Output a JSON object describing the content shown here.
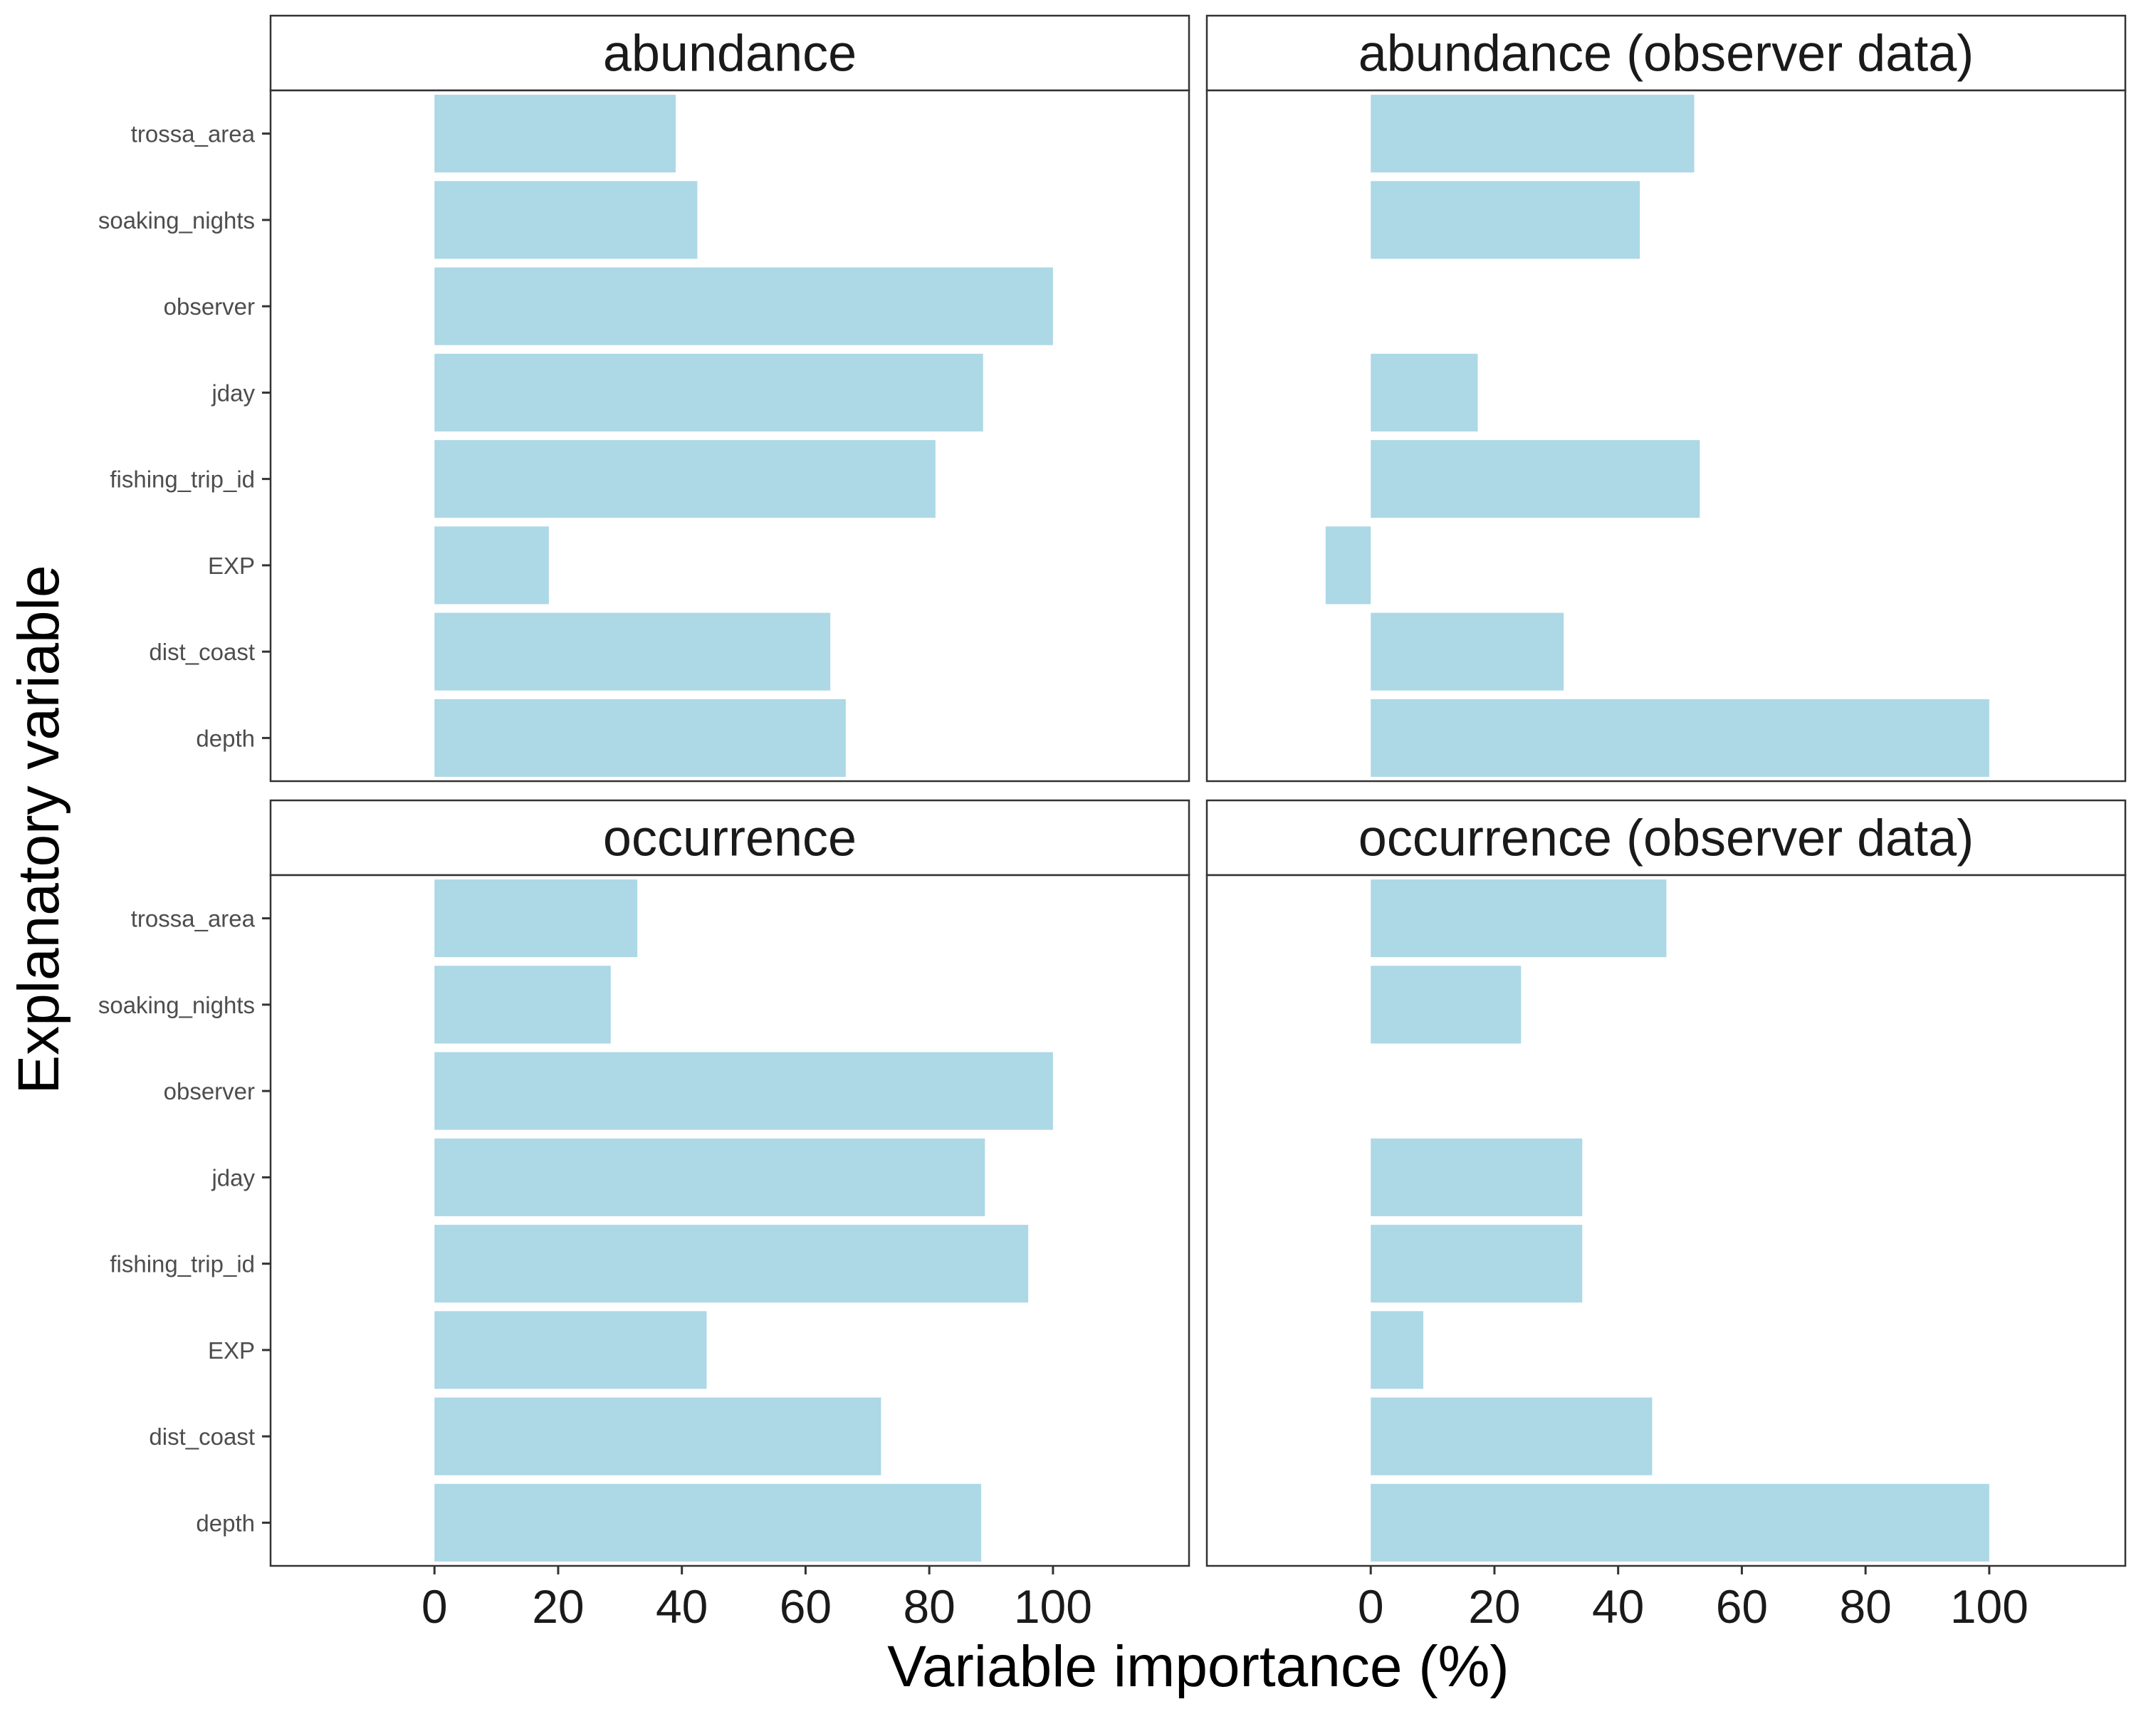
{
  "chart_data": {
    "type": "bar",
    "orientation": "horizontal",
    "facets": [
      "abundance",
      "abundance (observer data)",
      "occurrence",
      "occurrence (observer data)"
    ],
    "categories": [
      "trossa_area",
      "soaking_nights",
      "observer",
      "jday",
      "fishing_trip_id",
      "EXP",
      "dist_coast",
      "depth"
    ],
    "series": [
      {
        "name": "abundance",
        "values": [
          39,
          42.5,
          100,
          88.7,
          81,
          18.5,
          64,
          66.5
        ]
      },
      {
        "name": "abundance (observer data)",
        "values": [
          52.3,
          43.5,
          null,
          17.3,
          53.2,
          -7.3,
          31.2,
          100
        ]
      },
      {
        "name": "occurrence",
        "values": [
          32.8,
          28.5,
          100,
          89,
          96,
          44,
          72.2,
          88.4
        ]
      },
      {
        "name": "occurrence (observer data)",
        "values": [
          47.8,
          24.3,
          null,
          34.2,
          34.2,
          8.5,
          45.5,
          100
        ]
      }
    ],
    "xlabel": "Variable importance (%)",
    "ylabel": "Explanatory variable",
    "xlim": [
      -26.5,
      122
    ],
    "xticks": [
      0,
      20,
      40,
      60,
      80,
      100
    ],
    "grid": false,
    "bar_color": "#ADD8E6"
  }
}
